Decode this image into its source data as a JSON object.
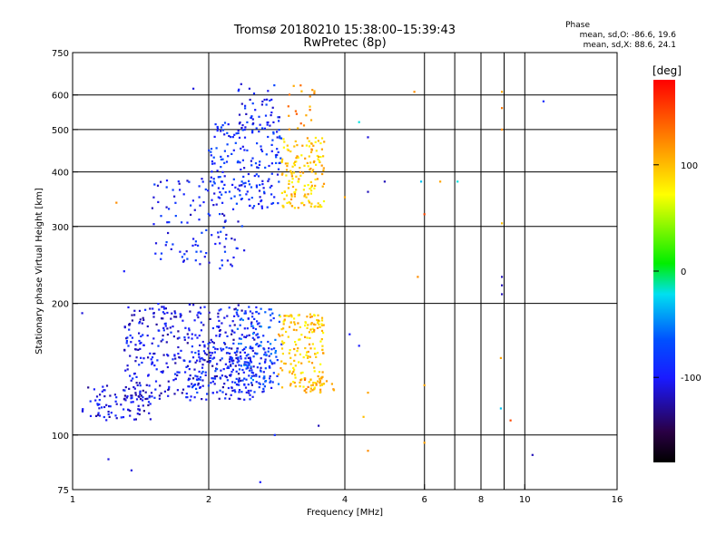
{
  "chart_data": {
    "type": "scatter",
    "title": "Tromsø 20180210 15:38:00–15:39:43",
    "subtitle": "RwPretec (8p)",
    "xlabel": "Frequency [MHz]",
    "ylabel": "Stationary phase Virtual Height [km]",
    "xscale": "log",
    "yscale": "log",
    "xlim": [
      1,
      16
    ],
    "ylim": [
      75,
      750
    ],
    "xticks": [
      1,
      2,
      4,
      6,
      8,
      10,
      16
    ],
    "yticks": [
      75,
      100,
      200,
      300,
      400,
      500,
      600,
      750
    ],
    "vgrid": [
      2,
      4,
      6,
      8,
      10
    ],
    "hgrid": [
      100,
      200,
      300,
      400,
      500,
      600
    ],
    "colorbar": {
      "label": "[deg]",
      "range": [
        -180,
        180
      ],
      "ticks": [
        -100,
        0,
        100
      ]
    },
    "stats": {
      "title": "Phase",
      "o_mode": "mean, sd,O: -86.6, 19.6",
      "x_mode": "mean, sd,X: 88.6, 24.1"
    },
    "clusters": [
      {
        "fmin": 1.05,
        "fmax": 1.5,
        "hmin": 108,
        "hmax": 130,
        "n": 90,
        "phase": -110
      },
      {
        "fmin": 1.3,
        "fmax": 2.6,
        "hmin": 120,
        "hmax": 200,
        "n": 420,
        "phase": -105
      },
      {
        "fmin": 1.8,
        "fmax": 2.8,
        "hmin": 125,
        "hmax": 160,
        "n": 150,
        "phase": -90
      },
      {
        "fmin": 2.3,
        "fmax": 2.9,
        "hmin": 130,
        "hmax": 195,
        "n": 90,
        "phase": -70
      },
      {
        "fmin": 2.85,
        "fmax": 3.6,
        "hmin": 125,
        "hmax": 190,
        "n": 170,
        "phase": 95
      },
      {
        "fmin": 3.1,
        "fmax": 3.8,
        "hmin": 125,
        "hmax": 135,
        "n": 25,
        "phase": 110
      },
      {
        "fmin": 1.5,
        "fmax": 2.4,
        "hmin": 240,
        "hmax": 390,
        "n": 110,
        "phase": -95
      },
      {
        "fmin": 2.0,
        "fmax": 2.9,
        "hmin": 330,
        "hmax": 520,
        "n": 180,
        "phase": -90
      },
      {
        "fmin": 2.3,
        "fmax": 2.9,
        "hmin": 480,
        "hmax": 640,
        "n": 50,
        "phase": -95
      },
      {
        "fmin": 2.9,
        "fmax": 3.6,
        "hmin": 330,
        "hmax": 480,
        "n": 150,
        "phase": 95
      },
      {
        "fmin": 3.0,
        "fmax": 3.5,
        "hmin": 500,
        "hmax": 640,
        "n": 20,
        "phase": 120
      }
    ],
    "isolated_points": [
      {
        "f": 1.05,
        "h": 190,
        "phase": -110
      },
      {
        "f": 1.2,
        "h": 88,
        "phase": -110
      },
      {
        "f": 1.35,
        "h": 83,
        "phase": -110
      },
      {
        "f": 1.3,
        "h": 237,
        "phase": -100
      },
      {
        "f": 1.25,
        "h": 340,
        "phase": 120
      },
      {
        "f": 1.85,
        "h": 620,
        "phase": -110
      },
      {
        "f": 4.0,
        "h": 350,
        "phase": 110
      },
      {
        "f": 4.5,
        "h": 480,
        "phase": -110
      },
      {
        "f": 4.3,
        "h": 520,
        "phase": -20
      },
      {
        "f": 4.5,
        "h": 360,
        "phase": -120
      },
      {
        "f": 4.9,
        "h": 380,
        "phase": -120
      },
      {
        "f": 4.1,
        "h": 170,
        "phase": -100
      },
      {
        "f": 4.3,
        "h": 160,
        "phase": -100
      },
      {
        "f": 4.5,
        "h": 125,
        "phase": 110
      },
      {
        "f": 4.4,
        "h": 110,
        "phase": 100
      },
      {
        "f": 4.5,
        "h": 92,
        "phase": 120
      },
      {
        "f": 3.5,
        "h": 105,
        "phase": -120
      },
      {
        "f": 2.8,
        "h": 100,
        "phase": -90
      },
      {
        "f": 2.6,
        "h": 78,
        "phase": -100
      },
      {
        "f": 5.7,
        "h": 610,
        "phase": 120
      },
      {
        "f": 6.0,
        "h": 320,
        "phase": 150
      },
      {
        "f": 5.9,
        "h": 380,
        "phase": -30
      },
      {
        "f": 6.5,
        "h": 380,
        "phase": 110
      },
      {
        "f": 7.1,
        "h": 380,
        "phase": -20
      },
      {
        "f": 5.8,
        "h": 230,
        "phase": 120
      },
      {
        "f": 6.0,
        "h": 130,
        "phase": 110
      },
      {
        "f": 6.0,
        "h": 96,
        "phase": 110
      },
      {
        "f": 8.9,
        "h": 610,
        "phase": 110
      },
      {
        "f": 8.9,
        "h": 560,
        "phase": 130
      },
      {
        "f": 8.9,
        "h": 500,
        "phase": 120
      },
      {
        "f": 8.9,
        "h": 230,
        "phase": -120
      },
      {
        "f": 8.9,
        "h": 220,
        "phase": -120
      },
      {
        "f": 8.9,
        "h": 210,
        "phase": -120
      },
      {
        "f": 8.85,
        "h": 150,
        "phase": 110
      },
      {
        "f": 8.85,
        "h": 115,
        "phase": -30
      },
      {
        "f": 9.3,
        "h": 108,
        "phase": 150
      },
      {
        "f": 10.4,
        "h": 90,
        "phase": -120
      },
      {
        "f": 11.0,
        "h": 580,
        "phase": -90
      },
      {
        "f": 8.9,
        "h": 305,
        "phase": 100
      }
    ]
  }
}
